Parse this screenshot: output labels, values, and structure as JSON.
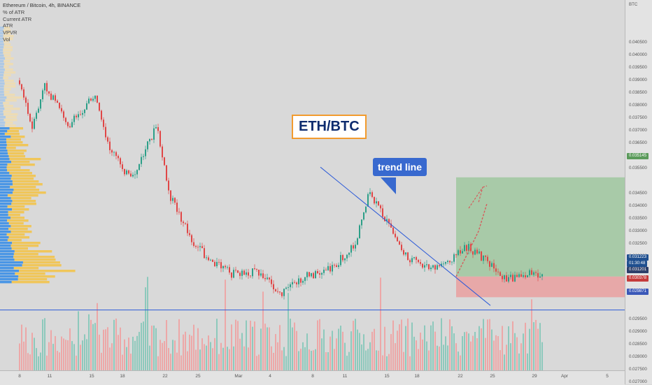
{
  "legend": {
    "symbol": "Ethereum / Bitcoin, 4h, BINANCE",
    "indicators": [
      "% of ATR",
      "Current ATR",
      "ATR",
      "VPVR",
      "Vol"
    ]
  },
  "annotations": {
    "title_box": "ETH/BTC",
    "trend_callout": "trend line"
  },
  "y_axis": {
    "unit": "BTC",
    "ticks": [
      "0.040500",
      "0.040000",
      "0.039500",
      "0.039000",
      "0.038500",
      "0.038000",
      "0.037500",
      "0.037000",
      "0.036500",
      "0.036000",
      "0.035500",
      "0.034500",
      "0.034000",
      "0.033500",
      "0.033000",
      "0.032500",
      "0.032000",
      "0.031500",
      "0.029500",
      "0.029000",
      "0.028500",
      "0.028000",
      "0.027500",
      "0.027000"
    ]
  },
  "x_axis": {
    "ticks": [
      "8",
      "11",
      "15",
      "18",
      "22",
      "25",
      "Mar",
      "4",
      "8",
      "11",
      "15",
      "18",
      "22",
      "25",
      "29",
      "Apr",
      "5"
    ]
  },
  "price_labels": {
    "target": "0.035145",
    "current": "0.031223",
    "countdown": "01:30:48",
    "entry": "0.031201",
    "stop": "0.030378",
    "low": "0.029871"
  },
  "colors": {
    "background": "#d9d9d9",
    "up_candle": "#2c9f88",
    "down_candle": "#e04646",
    "trend_line": "#2d5bd8",
    "profit_zone": "#9fc79f",
    "loss_zone": "#e8a2a2",
    "vp_up": "#3a8ee6",
    "vp_down": "#f3c243",
    "callout_border": "#f29b2e",
    "callout_blue": "#3869cf"
  },
  "chart_data": {
    "type": "candlestick",
    "title": "Ethereum / Bitcoin, 4h, BINANCE",
    "ylabel": "BTC",
    "ylim": [
      0.0265,
      0.041
    ],
    "x_labels": [
      "8",
      "11",
      "15",
      "18",
      "22",
      "25",
      "Mar",
      "4",
      "8",
      "11",
      "15",
      "18",
      "22",
      "25",
      "29",
      "Apr",
      "5"
    ],
    "path": [
      {
        "date": "Feb 8",
        "price": 0.039
      },
      {
        "date": "Feb 9",
        "price": 0.037
      },
      {
        "date": "Feb 10",
        "price": 0.0388
      },
      {
        "date": "Feb 12",
        "price": 0.0372
      },
      {
        "date": "Feb 14",
        "price": 0.0384
      },
      {
        "date": "Feb 15",
        "price": 0.0365
      },
      {
        "date": "Feb 17",
        "price": 0.035
      },
      {
        "date": "Feb 19",
        "price": 0.0372
      },
      {
        "date": "Feb 20",
        "price": 0.0345
      },
      {
        "date": "Feb 22",
        "price": 0.0325
      },
      {
        "date": "Feb 23",
        "price": 0.032
      },
      {
        "date": "Feb 25",
        "price": 0.0313
      },
      {
        "date": "Feb 27",
        "price": 0.0314
      },
      {
        "date": "Mar 1",
        "price": 0.0305
      },
      {
        "date": "Mar 3",
        "price": 0.0312
      },
      {
        "date": "Mar 5",
        "price": 0.0315
      },
      {
        "date": "Mar 7",
        "price": 0.0325
      },
      {
        "date": "Mar 8",
        "price": 0.0345
      },
      {
        "date": "Mar 9",
        "price": 0.0338
      },
      {
        "date": "Mar 11",
        "price": 0.032
      },
      {
        "date": "Mar 13",
        "price": 0.0315
      },
      {
        "date": "Mar 14",
        "price": 0.0317
      },
      {
        "date": "Mar 16",
        "price": 0.0324
      },
      {
        "date": "Mar 18",
        "price": 0.0316
      },
      {
        "date": "Mar 19",
        "price": 0.0311
      },
      {
        "date": "Mar 21",
        "price": 0.0313
      },
      {
        "date": "Mar 22",
        "price": 0.03122
      }
    ],
    "trend_line": [
      {
        "date": "Mar 8",
        "price": 0.03555
      },
      {
        "date": "Mar 25",
        "price": 0.03005
      }
    ],
    "support_level": 0.029871,
    "position": {
      "entry": 0.031201,
      "target": 0.035145,
      "stop": 0.030378,
      "from": "Mar 22",
      "to": "Mar 22"
    },
    "projected_path": [
      {
        "date": "Mar 22",
        "price": 0.0312
      },
      {
        "date": "Mar 23",
        "price": 0.033
      },
      {
        "date": "Mar 24",
        "price": 0.0341
      }
    ],
    "grid": false
  }
}
